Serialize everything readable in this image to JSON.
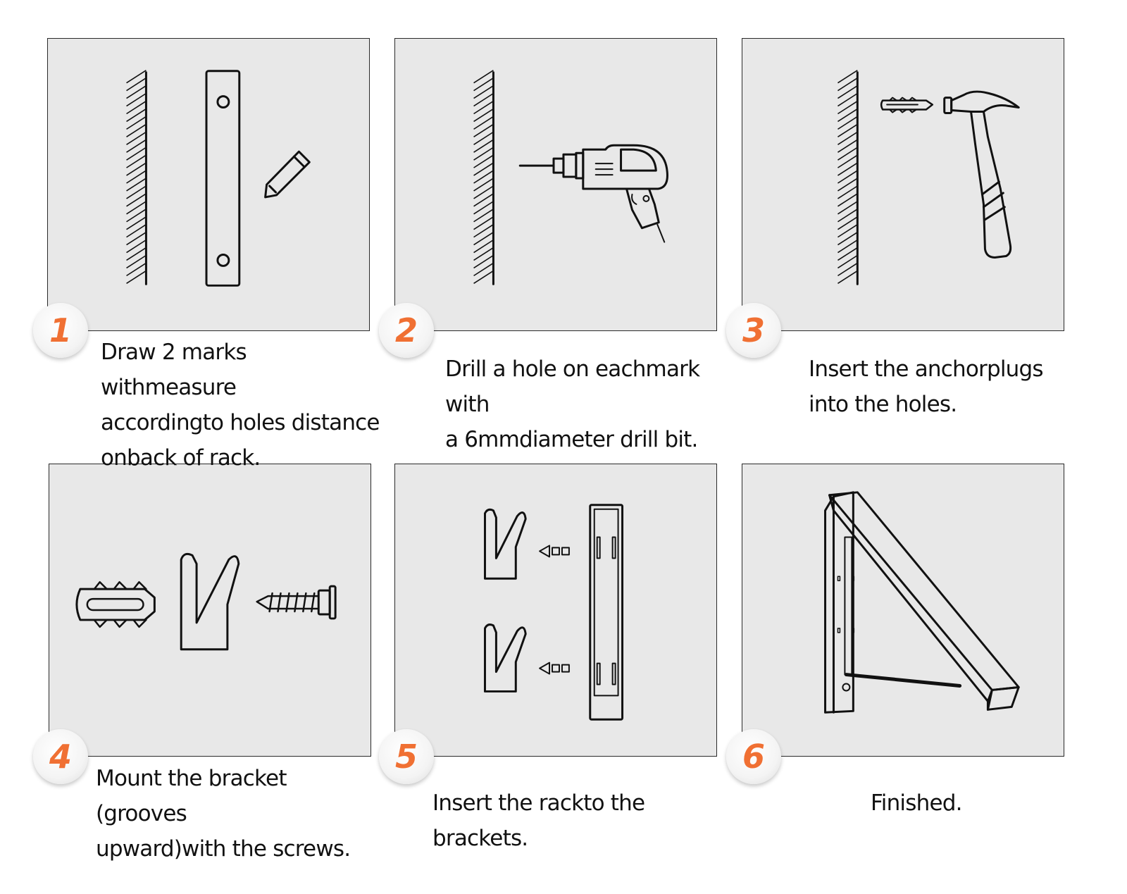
{
  "steps": [
    {
      "number": "1",
      "caption": "Draw 2 marks withmeasure\naccordingto holes distance\nonback of rack."
    },
    {
      "number": "2",
      "caption": "Drill a hole on eachmark with\na 6mmdiameter drill bit."
    },
    {
      "number": "3",
      "caption": "Insert the anchorplugs\ninto the holes."
    },
    {
      "number": "4",
      "caption": "Mount the bracket (grooves\nupward)with the screws."
    },
    {
      "number": "5",
      "caption": "Insert the rackto the brackets."
    },
    {
      "number": "6",
      "caption": "Finished."
    }
  ],
  "colors": {
    "accent": "#f07033",
    "panel": "#e8e8e8",
    "line": "#111111"
  },
  "icons": [
    "wall-icon",
    "rack-bar-icon",
    "pencil-icon",
    "drill-icon",
    "anchor-plug-icon",
    "hammer-icon",
    "bracket-icon",
    "screw-icon",
    "arrow-icon",
    "folding-rack-icon"
  ]
}
